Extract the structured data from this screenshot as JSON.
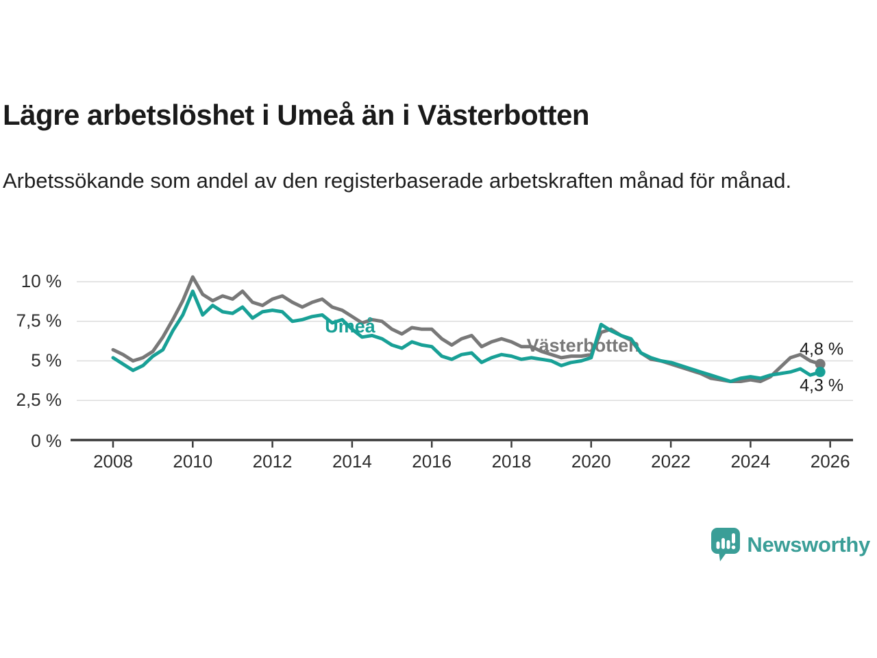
{
  "header": {
    "title": "Lägre arbetslöshet i Umeå än i Västerbotten",
    "subtitle": "Arbetssökande som andel av den registerbaserade arbetskraften månad för månad."
  },
  "chart_data": {
    "type": "line",
    "title": "Lägre arbetslöshet i Umeå än i Västerbotten",
    "subtitle": "Arbetssökande som andel av den registerbaserade arbetskraften månad för månad.",
    "xlabel": "",
    "ylabel": "",
    "unit": "%",
    "grid": "horizontal-gridlines-on",
    "legend_position": "inline-labels-on-lines",
    "xlim": [
      2007.2,
      2026.6
    ],
    "ylim": [
      0,
      10.5
    ],
    "x_ticks": [
      2008,
      2010,
      2012,
      2014,
      2016,
      2018,
      2020,
      2022,
      2024,
      2026
    ],
    "x_tick_labels": [
      "2008",
      "2010",
      "2012",
      "2014",
      "2016",
      "2018",
      "2020",
      "2022",
      "2024",
      "2026"
    ],
    "y_ticks": [
      0,
      2.5,
      5,
      7.5,
      10
    ],
    "y_tick_labels": [
      "0 %",
      "2,5 %",
      "5 %",
      "7,5 %",
      "10 %"
    ],
    "x_start": 2008.0,
    "x_step": 0.25,
    "series": [
      {
        "name": "Västerbotten",
        "color": "#787878",
        "end_label": "4,8 %",
        "end_value": 4.8,
        "label_at": {
          "x": 2019.8,
          "y": 5.9
        },
        "values": [
          5.7,
          5.4,
          5.0,
          5.2,
          5.6,
          6.5,
          7.6,
          8.8,
          10.3,
          9.2,
          8.8,
          9.1,
          8.9,
          9.4,
          8.7,
          8.5,
          8.9,
          9.1,
          8.7,
          8.4,
          8.7,
          8.9,
          8.4,
          8.2,
          7.8,
          7.4,
          7.6,
          7.5,
          7.0,
          6.7,
          7.1,
          7.0,
          7.0,
          6.4,
          6.0,
          6.4,
          6.6,
          5.9,
          6.2,
          6.4,
          6.2,
          5.9,
          5.9,
          5.6,
          5.4,
          5.2,
          5.3,
          5.3,
          5.4,
          6.8,
          7.0,
          6.6,
          6.3,
          5.5,
          5.1,
          5.0,
          4.8,
          4.6,
          4.4,
          4.2,
          3.9,
          3.8,
          3.7,
          3.7,
          3.8,
          3.7,
          4.0,
          4.6,
          5.2,
          5.4,
          5.0,
          4.8
        ]
      },
      {
        "name": "Umeå",
        "color": "#18a096",
        "end_label": "4,3 %",
        "end_value": 4.3,
        "label_at": {
          "x": 2013.95,
          "y": 7.1
        },
        "values": [
          5.2,
          4.8,
          4.4,
          4.7,
          5.3,
          5.7,
          6.9,
          7.9,
          9.4,
          7.9,
          8.5,
          8.1,
          8.0,
          8.4,
          7.7,
          8.1,
          8.2,
          8.1,
          7.5,
          7.6,
          7.8,
          7.9,
          7.4,
          7.6,
          7.0,
          6.5,
          6.6,
          6.4,
          6.0,
          5.8,
          6.2,
          6.0,
          5.9,
          5.3,
          5.1,
          5.4,
          5.5,
          4.9,
          5.2,
          5.4,
          5.3,
          5.1,
          5.2,
          5.1,
          5.0,
          4.7,
          4.9,
          5.0,
          5.2,
          7.3,
          6.9,
          6.6,
          6.4,
          5.5,
          5.2,
          5.0,
          4.9,
          4.7,
          4.5,
          4.3,
          4.1,
          3.9,
          3.7,
          3.9,
          4.0,
          3.9,
          4.1,
          4.2,
          4.3,
          4.5,
          4.1,
          4.3
        ]
      }
    ]
  },
  "footer": {
    "brand": "Newsworthy",
    "brand_color": "#3a9e97",
    "logo_icon": "newsworthy-speech-bubble-bar-chart-icon"
  }
}
